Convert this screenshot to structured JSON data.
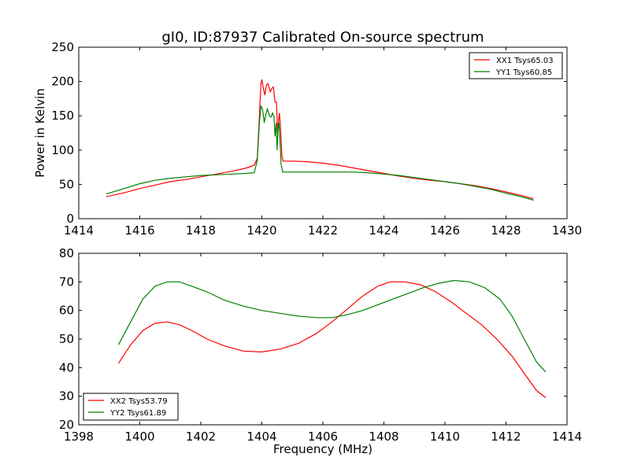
{
  "chart_data": [
    {
      "type": "line",
      "title": "gI0, ID:87937 Calibrated On-source spectrum",
      "xlabel": "",
      "ylabel": "Power in Kelvin",
      "xlim": [
        1414,
        1430
      ],
      "ylim": [
        0,
        250
      ],
      "xticks": [
        1414,
        1416,
        1418,
        1420,
        1422,
        1424,
        1426,
        1428,
        1430
      ],
      "yticks": [
        0,
        50,
        100,
        150,
        200,
        250
      ],
      "grid": false,
      "legend_position": "top-right",
      "series": [
        {
          "name": "XX1 Tsys65.03",
          "color": "#ff0000",
          "points": [
            [
              1414.9,
              32
            ],
            [
              1415.5,
              38
            ],
            [
              1416,
              44
            ],
            [
              1416.5,
              49
            ],
            [
              1417,
              54
            ],
            [
              1417.5,
              57
            ],
            [
              1418,
              61
            ],
            [
              1418.5,
              65
            ],
            [
              1419,
              69
            ],
            [
              1419.5,
              74
            ],
            [
              1419.75,
              78
            ],
            [
              1419.85,
              88
            ],
            [
              1419.92,
              150
            ],
            [
              1419.97,
              196
            ],
            [
              1420.0,
              203
            ],
            [
              1420.05,
              190
            ],
            [
              1420.1,
              180
            ],
            [
              1420.15,
              195
            ],
            [
              1420.2,
              197
            ],
            [
              1420.28,
              185
            ],
            [
              1420.33,
              190
            ],
            [
              1420.38,
              192
            ],
            [
              1420.43,
              170
            ],
            [
              1420.48,
              170
            ],
            [
              1420.52,
              125
            ],
            [
              1420.56,
              148
            ],
            [
              1420.58,
              154
            ],
            [
              1420.62,
              125
            ],
            [
              1420.66,
              90
            ],
            [
              1420.7,
              84
            ],
            [
              1421,
              84
            ],
            [
              1421.5,
              83
            ],
            [
              1422,
              81
            ],
            [
              1422.5,
              78
            ],
            [
              1423,
              74
            ],
            [
              1423.5,
              70
            ],
            [
              1424,
              66
            ],
            [
              1424.5,
              62
            ],
            [
              1425,
              59
            ],
            [
              1425.5,
              56
            ],
            [
              1426,
              54
            ],
            [
              1426.5,
              51
            ],
            [
              1427,
              48
            ],
            [
              1427.5,
              44
            ],
            [
              1428,
              39
            ],
            [
              1428.5,
              34
            ],
            [
              1428.9,
              29
            ]
          ]
        },
        {
          "name": "YY1 Tsys60.85",
          "color": "#008000",
          "points": [
            [
              1414.9,
              36
            ],
            [
              1415.5,
              44
            ],
            [
              1416,
              51
            ],
            [
              1416.5,
              56
            ],
            [
              1417,
              59
            ],
            [
              1417.5,
              61
            ],
            [
              1418,
              63
            ],
            [
              1418.5,
              64
            ],
            [
              1419,
              65
            ],
            [
              1419.5,
              66
            ],
            [
              1419.75,
              67
            ],
            [
              1419.85,
              85
            ],
            [
              1419.92,
              140
            ],
            [
              1419.97,
              164
            ],
            [
              1420.02,
              160
            ],
            [
              1420.08,
              140
            ],
            [
              1420.13,
              152
            ],
            [
              1420.18,
              160
            ],
            [
              1420.25,
              150
            ],
            [
              1420.3,
              148
            ],
            [
              1420.35,
              154
            ],
            [
              1420.4,
              148
            ],
            [
              1420.43,
              120
            ],
            [
              1420.47,
              140
            ],
            [
              1420.5,
              100
            ],
            [
              1420.53,
              130
            ],
            [
              1420.56,
              140
            ],
            [
              1420.6,
              110
            ],
            [
              1420.63,
              80
            ],
            [
              1420.68,
              68
            ],
            [
              1421,
              68
            ],
            [
              1422,
              68
            ],
            [
              1423,
              68
            ],
            [
              1423.5,
              67
            ],
            [
              1424,
              65
            ],
            [
              1424.5,
              63
            ],
            [
              1425,
              60
            ],
            [
              1425.5,
              57
            ],
            [
              1426,
              54
            ],
            [
              1426.5,
              51
            ],
            [
              1427,
              47
            ],
            [
              1427.5,
              43
            ],
            [
              1428,
              37
            ],
            [
              1428.5,
              32
            ],
            [
              1428.9,
              27
            ]
          ]
        }
      ]
    },
    {
      "type": "line",
      "title": "",
      "xlabel": "Frequency (MHz)",
      "ylabel": "",
      "xlim": [
        1398,
        1414
      ],
      "ylim": [
        20,
        80
      ],
      "xticks": [
        1398,
        1400,
        1402,
        1404,
        1406,
        1408,
        1410,
        1412,
        1414
      ],
      "yticks": [
        20,
        30,
        40,
        50,
        60,
        70,
        80
      ],
      "grid": false,
      "legend_position": "bottom-left",
      "series": [
        {
          "name": "XX2 Tsys53.79",
          "color": "#ff0000",
          "points": [
            [
              1399.3,
              41.5
            ],
            [
              1399.7,
              48
            ],
            [
              1400.1,
              53
            ],
            [
              1400.5,
              55.5
            ],
            [
              1400.9,
              56
            ],
            [
              1401.3,
              55
            ],
            [
              1401.7,
              53
            ],
            [
              1402.2,
              50
            ],
            [
              1402.8,
              47.5
            ],
            [
              1403.4,
              45.8
            ],
            [
              1404,
              45.5
            ],
            [
              1404.6,
              46.5
            ],
            [
              1405.2,
              48.5
            ],
            [
              1405.8,
              52
            ],
            [
              1406.3,
              56
            ],
            [
              1406.8,
              60.5
            ],
            [
              1407.3,
              65
            ],
            [
              1407.8,
              68.5
            ],
            [
              1408.2,
              70
            ],
            [
              1408.7,
              70
            ],
            [
              1409.2,
              69
            ],
            [
              1409.7,
              66.5
            ],
            [
              1410.2,
              63
            ],
            [
              1410.7,
              59
            ],
            [
              1411.2,
              55
            ],
            [
              1411.7,
              50
            ],
            [
              1412.2,
              44
            ],
            [
              1412.6,
              38
            ],
            [
              1413,
              32
            ],
            [
              1413.3,
              29.5
            ]
          ]
        },
        {
          "name": "YY2 Tsys61.89",
          "color": "#008000",
          "points": [
            [
              1399.3,
              48
            ],
            [
              1399.7,
              56
            ],
            [
              1400.1,
              64
            ],
            [
              1400.5,
              68.5
            ],
            [
              1400.9,
              70
            ],
            [
              1401.3,
              70
            ],
            [
              1401.7,
              68.5
            ],
            [
              1402.2,
              66.5
            ],
            [
              1402.8,
              63.5
            ],
            [
              1403.4,
              61.5
            ],
            [
              1404,
              60
            ],
            [
              1404.6,
              59
            ],
            [
              1405.2,
              58
            ],
            [
              1405.8,
              57.5
            ],
            [
              1406.3,
              57.5
            ],
            [
              1406.8,
              58.5
            ],
            [
              1407.3,
              60
            ],
            [
              1407.8,
              62
            ],
            [
              1408.3,
              64
            ],
            [
              1408.8,
              66
            ],
            [
              1409.3,
              68
            ],
            [
              1409.8,
              69.5
            ],
            [
              1410.3,
              70.5
            ],
            [
              1410.8,
              70
            ],
            [
              1411.3,
              68
            ],
            [
              1411.8,
              64
            ],
            [
              1412.2,
              58
            ],
            [
              1412.6,
              50
            ],
            [
              1413,
              42
            ],
            [
              1413.3,
              38.5
            ]
          ]
        }
      ]
    }
  ]
}
